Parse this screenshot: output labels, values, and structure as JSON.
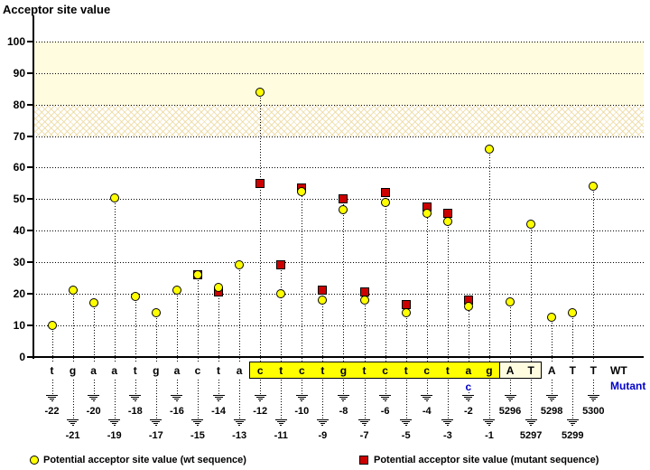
{
  "title": "Acceptor site value",
  "row_labels": {
    "wt": "WT",
    "mutant": "Mutant"
  },
  "legend": {
    "wt": "Potential acceptor site value (wt sequence)",
    "mutant": "Potential acceptor site value (mutant sequence)"
  },
  "colors": {
    "wt_fill": "#ffff00",
    "mutant_fill": "#cc0000",
    "band_solid": "#fffce0",
    "highlight_box": "#ffff00",
    "exon_box_fill": "#fffce0",
    "mutant_text": "#0000cc"
  },
  "chart_data": {
    "type": "scatter",
    "title": "Acceptor site value",
    "ylabel": "Acceptor site value",
    "xlabel": "",
    "ylim": [
      0,
      105
    ],
    "yticks": [
      0,
      10,
      20,
      30,
      40,
      50,
      60,
      70,
      80,
      90,
      100
    ],
    "grid": true,
    "legend_position": "bottom",
    "threshold_bands": [
      {
        "range": [
          80,
          100
        ],
        "style": "solid"
      },
      {
        "range": [
          70,
          80
        ],
        "style": "hatch"
      }
    ],
    "series": [
      {
        "name": "Potential acceptor site value (wt sequence)",
        "marker": "circle",
        "color": "#ffff00"
      },
      {
        "name": "Potential acceptor site value (mutant sequence)",
        "marker": "square",
        "color": "#cc0000"
      }
    ],
    "points": [
      {
        "pos": "-22",
        "base": "t",
        "wt": 10,
        "mut": null
      },
      {
        "pos": "-21",
        "base": "g",
        "wt": 21,
        "mut": null
      },
      {
        "pos": "-20",
        "base": "a",
        "wt": 17,
        "mut": null
      },
      {
        "pos": "-19",
        "base": "a",
        "wt": 50.5,
        "mut": null
      },
      {
        "pos": "-18",
        "base": "t",
        "wt": 19,
        "mut": null
      },
      {
        "pos": "-17",
        "base": "g",
        "wt": 14,
        "mut": null
      },
      {
        "pos": "-16",
        "base": "a",
        "wt": 21,
        "mut": null
      },
      {
        "pos": "-15",
        "base": "c",
        "wt": 26,
        "mut": 26
      },
      {
        "pos": "-14",
        "base": "t",
        "wt": 22,
        "mut": 20.5
      },
      {
        "pos": "-13",
        "base": "a",
        "wt": 29,
        "mut": null
      },
      {
        "pos": "-12",
        "base": "c",
        "wt": 84,
        "mut": 55,
        "highlight": true
      },
      {
        "pos": "-11",
        "base": "t",
        "wt": 20,
        "mut": 29,
        "highlight": true
      },
      {
        "pos": "-10",
        "base": "c",
        "wt": 52.5,
        "mut": 53.5,
        "highlight": true
      },
      {
        "pos": "-9",
        "base": "t",
        "wt": 18,
        "mut": 21,
        "highlight": true
      },
      {
        "pos": "-8",
        "base": "g",
        "wt": 46.5,
        "mut": 50,
        "highlight": true
      },
      {
        "pos": "-7",
        "base": "t",
        "wt": 18,
        "mut": 20.5,
        "highlight": true
      },
      {
        "pos": "-6",
        "base": "c",
        "wt": 49,
        "mut": 52,
        "highlight": true
      },
      {
        "pos": "-5",
        "base": "t",
        "wt": 14,
        "mut": 16.5,
        "highlight": true
      },
      {
        "pos": "-4",
        "base": "c",
        "wt": 45.5,
        "mut": 47.5,
        "highlight": true
      },
      {
        "pos": "-3",
        "base": "t",
        "wt": 43,
        "mut": 45.5,
        "highlight": true
      },
      {
        "pos": "-2",
        "base": "a",
        "mut_base": "c",
        "wt": 16,
        "mut": 18,
        "highlight": true
      },
      {
        "pos": "-1",
        "base": "g",
        "wt": 66,
        "mut": null,
        "highlight": true
      },
      {
        "pos": "5296",
        "base": "A",
        "wt": 17.5,
        "mut": null,
        "exon_box": true
      },
      {
        "pos": "5297",
        "base": "T",
        "wt": 42,
        "mut": null,
        "exon_box": true
      },
      {
        "pos": "5298",
        "base": "A",
        "wt": 12.5,
        "mut": null
      },
      {
        "pos": "5299",
        "base": "T",
        "wt": 14,
        "mut": null
      },
      {
        "pos": "5300",
        "base": "T",
        "wt": 54,
        "mut": null
      }
    ]
  }
}
